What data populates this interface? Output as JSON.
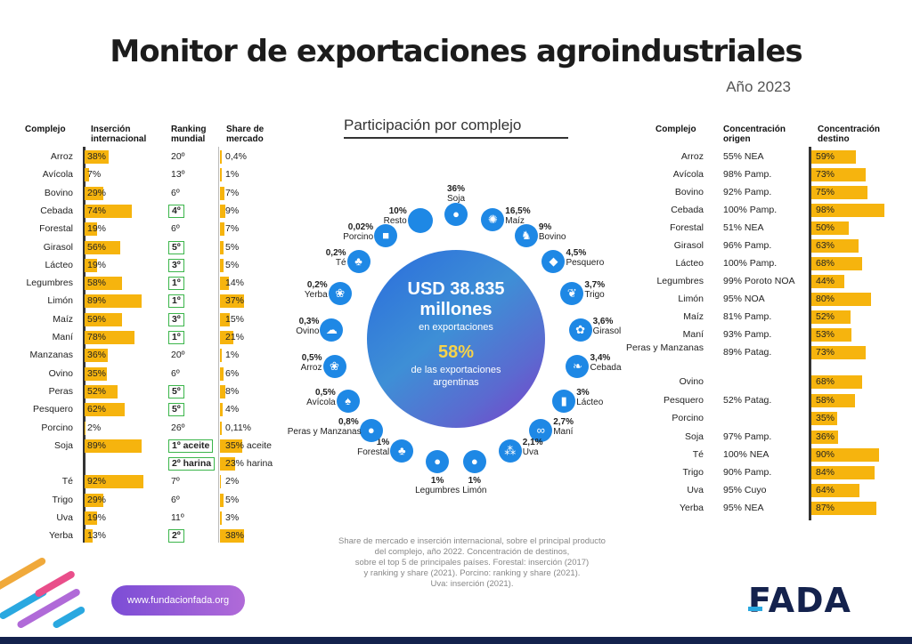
{
  "header": {
    "title": "Monitor de exportaciones agroindustriales",
    "year": "Año 2023"
  },
  "left_headers": {
    "complejo": "Complejo",
    "insercion": "Inserción internacional",
    "ranking": "Ranking mundial",
    "share": "Share de mercado"
  },
  "right_headers": {
    "complejo": "Complejo",
    "origen": "Concentración origen",
    "destino": "Concentración destino"
  },
  "center": {
    "title": "Participación por complejo",
    "amount": "USD 38.835",
    "amount_unit": "millones",
    "amount_sub": "en exportaciones",
    "pct": "58%",
    "pct_sub_1": "de las exportaciones",
    "pct_sub_2": "argentinas"
  },
  "footnote": [
    "Share de mercado e inserción internacional, sobre el principal producto",
    "del complejo, año 2022. Concentración de destinos,",
    "sobre el top 5 de principales países. Forestal: inserción (2017)",
    "y ranking y share (2021). Porcino: ranking y share (2021).",
    "Uva: inserción (2021)."
  ],
  "url": "www.fundacionfada.org",
  "logo": "FADA",
  "colors": {
    "bar": "#f6b40e",
    "ranking_box": "#3bb54a",
    "node": "#1e88e5",
    "brand": "#14224d"
  },
  "chart_data": [
    {
      "type": "table",
      "name": "left",
      "columns": [
        "Complejo",
        "Inserción internacional",
        "Ranking mundial",
        "Share de mercado"
      ],
      "rows": [
        {
          "complejo": "Arroz",
          "insercion": "38%",
          "ins": 38,
          "ranking": "20º",
          "boxed": false,
          "share": "0,4%",
          "sh": 0.4
        },
        {
          "complejo": "Avícola",
          "insercion": "7%",
          "ins": 7,
          "ranking": "13º",
          "boxed": false,
          "share": "1%",
          "sh": 1
        },
        {
          "complejo": "Bovino",
          "insercion": "29%",
          "ins": 29,
          "ranking": "6º",
          "boxed": false,
          "share": "7%",
          "sh": 7
        },
        {
          "complejo": "Cebada",
          "insercion": "74%",
          "ins": 74,
          "ranking": "4º",
          "boxed": true,
          "share": "9%",
          "sh": 9
        },
        {
          "complejo": "Forestal",
          "insercion": "19%",
          "ins": 19,
          "ranking": "6º",
          "boxed": false,
          "share": "7%",
          "sh": 7
        },
        {
          "complejo": "Girasol",
          "insercion": "56%",
          "ins": 56,
          "ranking": "5º",
          "boxed": true,
          "share": "5%",
          "sh": 5
        },
        {
          "complejo": "Lácteo",
          "insercion": "19%",
          "ins": 19,
          "ranking": "3º",
          "boxed": true,
          "share": "5%",
          "sh": 5
        },
        {
          "complejo": "Legumbres",
          "insercion": "58%",
          "ins": 58,
          "ranking": "1º",
          "boxed": true,
          "share": "14%",
          "sh": 14
        },
        {
          "complejo": "Limón",
          "insercion": "89%",
          "ins": 89,
          "ranking": "1º",
          "boxed": true,
          "share": "37%",
          "sh": 37
        },
        {
          "complejo": "Maíz",
          "insercion": "59%",
          "ins": 59,
          "ranking": "3º",
          "boxed": true,
          "share": "15%",
          "sh": 15
        },
        {
          "complejo": "Maní",
          "insercion": "78%",
          "ins": 78,
          "ranking": "1º",
          "boxed": true,
          "share": "21%",
          "sh": 21
        },
        {
          "complejo": "Manzanas",
          "insercion": "36%",
          "ins": 36,
          "ranking": "20º",
          "boxed": false,
          "share": "1%",
          "sh": 1
        },
        {
          "complejo": "Ovino",
          "insercion": "35%",
          "ins": 35,
          "ranking": "6º",
          "boxed": false,
          "share": "6%",
          "sh": 6
        },
        {
          "complejo": "Peras",
          "insercion": "52%",
          "ins": 52,
          "ranking": "5º",
          "boxed": true,
          "share": "8%",
          "sh": 8
        },
        {
          "complejo": "Pesquero",
          "insercion": "62%",
          "ins": 62,
          "ranking": "5º",
          "boxed": true,
          "share": "4%",
          "sh": 4
        },
        {
          "complejo": "Porcino",
          "insercion": "2%",
          "ins": 2,
          "ranking": "26º",
          "boxed": false,
          "share": "0,11%",
          "sh": 0.11
        },
        {
          "complejo": "Soja",
          "insercion": "89%",
          "ins": 89,
          "ranking": "1º aceite",
          "boxed": true,
          "share": "35% aceite",
          "sh": 35
        },
        {
          "complejo": "",
          "insercion": "",
          "ins": null,
          "ranking": "2º harina",
          "boxed": true,
          "share": "23% harina",
          "sh": 23
        },
        {
          "complejo": "Té",
          "insercion": "92%",
          "ins": 92,
          "ranking": "7º",
          "boxed": false,
          "share": "2%",
          "sh": 2
        },
        {
          "complejo": "Trigo",
          "insercion": "29%",
          "ins": 29,
          "ranking": "6º",
          "boxed": false,
          "share": "5%",
          "sh": 5
        },
        {
          "complejo": "Uva",
          "insercion": "19%",
          "ins": 19,
          "ranking": "11º",
          "boxed": false,
          "share": "3%",
          "sh": 3
        },
        {
          "complejo": "Yerba",
          "insercion": "13%",
          "ins": 13,
          "ranking": "2º",
          "boxed": true,
          "share": "38%",
          "sh": 38
        }
      ]
    },
    {
      "type": "pie",
      "name": "Participación por complejo",
      "slices": [
        {
          "label": "Soja",
          "value": 36,
          "display": "36%",
          "icon": "soybean-icon",
          "glyph": "●"
        },
        {
          "label": "Maíz",
          "value": 16.5,
          "display": "16,5%",
          "icon": "corn-icon",
          "glyph": "✺"
        },
        {
          "label": "Bovino",
          "value": 9,
          "display": "9%",
          "icon": "cow-icon",
          "glyph": "♞"
        },
        {
          "label": "Pesquero",
          "value": 4.5,
          "display": "4,5%",
          "icon": "fish-icon",
          "glyph": "◆"
        },
        {
          "label": "Trigo",
          "value": 3.7,
          "display": "3,7%",
          "icon": "wheat-icon",
          "glyph": "❦"
        },
        {
          "label": "Girasol",
          "value": 3.6,
          "display": "3,6%",
          "icon": "sunflower-icon",
          "glyph": "✿"
        },
        {
          "label": "Cebada",
          "value": 3.4,
          "display": "3,4%",
          "icon": "barley-icon",
          "glyph": "❧"
        },
        {
          "label": "Lácteo",
          "value": 3,
          "display": "3%",
          "icon": "milk-icon",
          "glyph": "▮"
        },
        {
          "label": "Maní",
          "value": 2.7,
          "display": "2,7%",
          "icon": "peanut-icon",
          "glyph": "∞"
        },
        {
          "label": "Uva",
          "value": 2.1,
          "display": "2,1%",
          "icon": "grape-icon",
          "glyph": "⁂"
        },
        {
          "label": "Limón",
          "value": 1,
          "display": "1%",
          "icon": "lemon-icon",
          "glyph": "●"
        },
        {
          "label": "Legumbres",
          "value": 1,
          "display": "1%",
          "icon": "bean-icon",
          "glyph": "●"
        },
        {
          "label": "Forestal",
          "value": 1,
          "display": "1%",
          "icon": "tree-icon",
          "glyph": "♣"
        },
        {
          "label": "Peras y Manzanas",
          "value": 0.8,
          "display": "0,8%",
          "icon": "apple-icon",
          "glyph": "●"
        },
        {
          "label": "Avícola",
          "value": 0.5,
          "display": "0,5%",
          "icon": "chicken-icon",
          "glyph": "♠"
        },
        {
          "label": "Arroz",
          "value": 0.5,
          "display": "0,5%",
          "icon": "rice-icon",
          "glyph": "❀"
        },
        {
          "label": "Ovino",
          "value": 0.3,
          "display": "0,3%",
          "icon": "sheep-icon",
          "glyph": "☁"
        },
        {
          "label": "Yerba",
          "value": 0.2,
          "display": "0,2%",
          "icon": "yerba-icon",
          "glyph": "❀"
        },
        {
          "label": "Té",
          "value": 0.2,
          "display": "0,2%",
          "icon": "tea-icon",
          "glyph": "♣"
        },
        {
          "label": "Porcino",
          "value": 0.02,
          "display": "0,02%",
          "icon": "pig-icon",
          "glyph": "■"
        },
        {
          "label": "Resto",
          "value": 10,
          "display": "10%",
          "icon": "",
          "glyph": ""
        }
      ]
    },
    {
      "type": "table",
      "name": "right",
      "columns": [
        "Complejo",
        "Concentración origen",
        "Concentración destino"
      ],
      "rows": [
        {
          "complejo": "Arroz",
          "origen": "55% NEA",
          "destino": "59%",
          "dest": 59
        },
        {
          "complejo": "Avícola",
          "origen": "98% Pamp.",
          "destino": "73%",
          "dest": 73
        },
        {
          "complejo": "Bovino",
          "origen": "92% Pamp.",
          "destino": "75%",
          "dest": 75
        },
        {
          "complejo": "Cebada",
          "origen": "100% Pamp.",
          "destino": "98%",
          "dest": 98
        },
        {
          "complejo": "Forestal",
          "origen": "51% NEA",
          "destino": "50%",
          "dest": 50
        },
        {
          "complejo": "Girasol",
          "origen": "96% Pamp.",
          "destino": "63%",
          "dest": 63
        },
        {
          "complejo": "Lácteo",
          "origen": "100% Pamp.",
          "destino": "68%",
          "dest": 68
        },
        {
          "complejo": "Legumbres",
          "origen": "99% Poroto NOA",
          "destino": "44%",
          "dest": 44
        },
        {
          "complejo": "Limón",
          "origen": "95% NOA",
          "destino": "80%",
          "dest": 80
        },
        {
          "complejo": "Maíz",
          "origen": "81% Pamp.",
          "destino": "52%",
          "dest": 52
        },
        {
          "complejo": "Maní",
          "origen": "93% Pamp.",
          "destino": "53%",
          "dest": 53
        },
        {
          "complejo": "Peras y Manzanas",
          "origen": "89% Patag.",
          "destino": "73%",
          "dest": 73
        },
        {
          "complejo": "Ovino",
          "origen": "",
          "destino": "68%",
          "dest": 68
        },
        {
          "complejo": "Pesquero",
          "origen": "52% Patag.",
          "destino": "58%",
          "dest": 58
        },
        {
          "complejo": "Porcino",
          "origen": "",
          "destino": "35%",
          "dest": 35
        },
        {
          "complejo": "Soja",
          "origen": "97% Pamp.",
          "destino": "36%",
          "dest": 36
        },
        {
          "complejo": "Té",
          "origen": "100% NEA",
          "destino": "90%",
          "dest": 90
        },
        {
          "complejo": "Trigo",
          "origen": "90% Pamp.",
          "destino": "84%",
          "dest": 84
        },
        {
          "complejo": "Uva",
          "origen": "95% Cuyo",
          "destino": "64%",
          "dest": 64
        },
        {
          "complejo": "Yerba",
          "origen": "95% NEA",
          "destino": "87%",
          "dest": 87
        }
      ]
    }
  ]
}
